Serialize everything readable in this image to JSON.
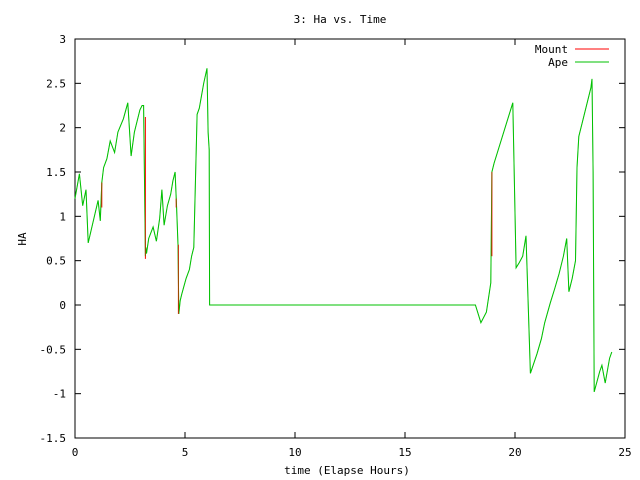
{
  "chart_data": {
    "type": "line",
    "title": "3: Ha vs. Time",
    "xlabel": "time (Elapse Hours)",
    "ylabel": "HA",
    "xlim": [
      0,
      25
    ],
    "ylim": [
      -1.5,
      3
    ],
    "xticks": [
      0,
      5,
      10,
      15,
      20,
      25
    ],
    "xtick_labels": [
      "0",
      "5",
      "10",
      "15",
      "20",
      "25"
    ],
    "yticks": [
      -1.5,
      -1,
      -0.5,
      0,
      0.5,
      1,
      1.5,
      2,
      2.5,
      3
    ],
    "ytick_labels": [
      "-1.5",
      "-1",
      "-0.5",
      "0",
      "0.5",
      "1",
      "1.5",
      "2",
      "2.5",
      "3"
    ],
    "grid": false,
    "legend_position": "top-right",
    "series": [
      {
        "name": "Mount",
        "color": "#ff0000",
        "segments": [
          [
            [
              1.22,
              1.1
            ],
            [
              1.22,
              1.38
            ]
          ],
          [
            [
              3.2,
              2.12
            ],
            [
              3.2,
              0.52
            ]
          ],
          [
            [
              4.7,
              0.68
            ],
            [
              4.7,
              -0.1
            ]
          ],
          [
            [
              4.6,
              1.2
            ],
            [
              4.6,
              1.1
            ]
          ],
          [
            [
              18.95,
              0.55
            ],
            [
              18.95,
              1.5
            ]
          ]
        ]
      },
      {
        "name": "Ape",
        "color": "#00c000",
        "points": [
          [
            0,
            1.2
          ],
          [
            0.2,
            1.48
          ],
          [
            0.35,
            1.12
          ],
          [
            0.5,
            1.3
          ],
          [
            0.6,
            0.7
          ],
          [
            1.05,
            1.18
          ],
          [
            1.15,
            0.95
          ],
          [
            1.22,
            1.38
          ],
          [
            1.3,
            1.55
          ],
          [
            1.45,
            1.65
          ],
          [
            1.6,
            1.85
          ],
          [
            1.8,
            1.72
          ],
          [
            1.95,
            1.95
          ],
          [
            2.2,
            2.1
          ],
          [
            2.4,
            2.28
          ],
          [
            2.55,
            1.68
          ],
          [
            2.7,
            1.95
          ],
          [
            2.95,
            2.2
          ],
          [
            3.05,
            2.25
          ],
          [
            3.12,
            2.25
          ],
          [
            3.2,
            0.55
          ],
          [
            3.22,
            0.65
          ],
          [
            3.25,
            0.58
          ],
          [
            3.35,
            0.75
          ],
          [
            3.55,
            0.88
          ],
          [
            3.7,
            0.72
          ],
          [
            3.85,
            0.98
          ],
          [
            3.95,
            1.3
          ],
          [
            4.05,
            0.9
          ],
          [
            4.2,
            1.12
          ],
          [
            4.35,
            1.25
          ],
          [
            4.45,
            1.4
          ],
          [
            4.55,
            1.5
          ],
          [
            4.62,
            1.1
          ],
          [
            4.68,
            0.68
          ],
          [
            4.7,
            0.3
          ],
          [
            4.72,
            -0.1
          ],
          [
            4.78,
            0.05
          ],
          [
            4.85,
            0.12
          ],
          [
            5.05,
            0.3
          ],
          [
            5.2,
            0.4
          ],
          [
            5.3,
            0.55
          ],
          [
            5.4,
            0.65
          ],
          [
            5.55,
            2.15
          ],
          [
            5.65,
            2.22
          ],
          [
            5.85,
            2.5
          ],
          [
            6.0,
            2.67
          ],
          [
            6.05,
            1.95
          ],
          [
            6.1,
            1.75
          ],
          [
            6.12,
            0.0
          ],
          [
            18.2,
            0.0
          ],
          [
            18.45,
            -0.2
          ],
          [
            18.7,
            -0.08
          ],
          [
            18.9,
            0.25
          ],
          [
            18.95,
            1.5
          ],
          [
            19.05,
            1.6
          ],
          [
            19.2,
            1.72
          ],
          [
            19.9,
            2.28
          ],
          [
            20.05,
            0.42
          ],
          [
            20.2,
            0.48
          ],
          [
            20.35,
            0.55
          ],
          [
            20.5,
            0.78
          ],
          [
            20.7,
            -0.77
          ],
          [
            21.0,
            -0.55
          ],
          [
            21.2,
            -0.38
          ],
          [
            21.35,
            -0.2
          ],
          [
            21.6,
            0.02
          ],
          [
            21.8,
            0.18
          ],
          [
            22.0,
            0.35
          ],
          [
            22.2,
            0.55
          ],
          [
            22.35,
            0.75
          ],
          [
            22.45,
            0.15
          ],
          [
            22.6,
            0.3
          ],
          [
            22.75,
            0.5
          ],
          [
            22.82,
            1.55
          ],
          [
            22.9,
            1.9
          ],
          [
            23.05,
            2.05
          ],
          [
            23.25,
            2.25
          ],
          [
            23.45,
            2.45
          ],
          [
            23.5,
            2.55
          ],
          [
            23.55,
            1.5
          ],
          [
            23.6,
            -0.98
          ],
          [
            23.85,
            -0.75
          ],
          [
            23.95,
            -0.68
          ],
          [
            24.1,
            -0.88
          ],
          [
            24.3,
            -0.6
          ],
          [
            24.4,
            -0.53
          ]
        ]
      }
    ]
  }
}
